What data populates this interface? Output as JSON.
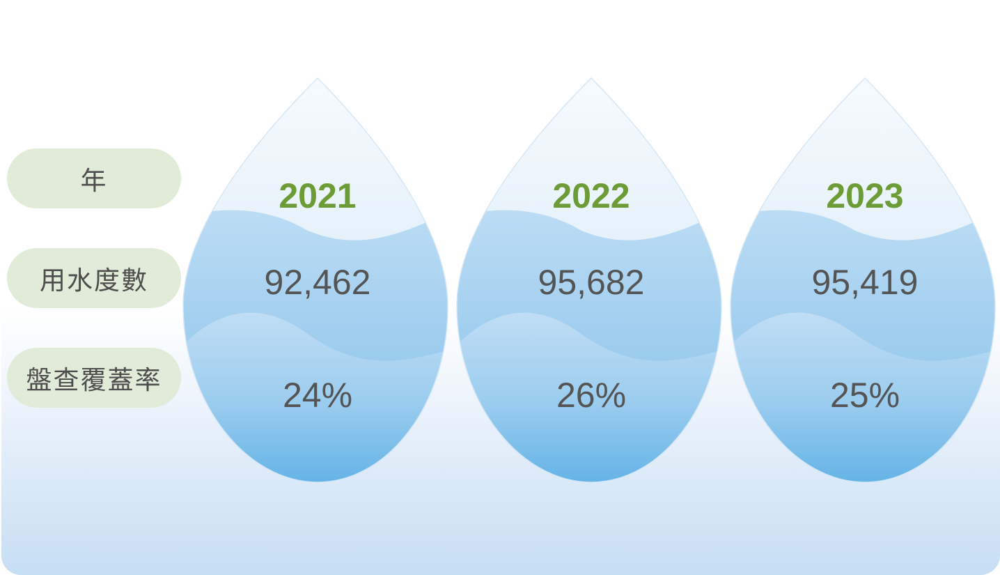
{
  "labels": {
    "year": "年",
    "water_usage": "用水度數",
    "coverage_rate": "盤查覆蓋率"
  },
  "columns": [
    {
      "year": "2021",
      "water_usage": "92,462",
      "coverage_rate": "24%"
    },
    {
      "year": "2022",
      "water_usage": "95,682",
      "coverage_rate": "26%"
    },
    {
      "year": "2023",
      "water_usage": "95,419",
      "coverage_rate": "25%"
    }
  ],
  "colors": {
    "year_text": "#6b9c35",
    "value_text": "#545454",
    "label_pill": "#e0ecd7",
    "water_light": "#f3f8fd",
    "water_mid": "#b9daf3",
    "water_deep": "#63b3e6"
  }
}
